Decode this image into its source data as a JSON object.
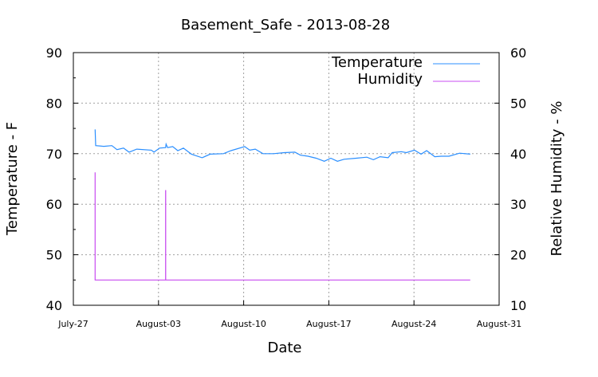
{
  "chart_data": {
    "type": "line",
    "title": "Basement_Safe - 2013-08-28",
    "xlabel": "Date",
    "ylabel": "Temperature - F",
    "y2label": "Relative Humidity - %",
    "xlim": [
      "2013-07-27T00:00",
      "2013-08-31T00:00"
    ],
    "ylim": [
      40,
      90
    ],
    "y2lim": [
      10,
      60
    ],
    "x_ticks": [
      {
        "date": "2013-07-27T00:00",
        "label": "July-27"
      },
      {
        "date": "2013-08-03T00:00",
        "label": "August-03"
      },
      {
        "date": "2013-08-10T00:00",
        "label": "August-10"
      },
      {
        "date": "2013-08-17T00:00",
        "label": "August-17"
      },
      {
        "date": "2013-08-24T00:00",
        "label": "August-24"
      },
      {
        "date": "2013-08-31T00:00",
        "label": "August-31"
      }
    ],
    "y_ticks": [
      "40",
      "50",
      "60",
      "70",
      "80",
      "90"
    ],
    "y2_ticks": [
      "10",
      "20",
      "30",
      "40",
      "50",
      "60"
    ],
    "grid": true,
    "legend": "top-right",
    "series": [
      {
        "name": "Temperature",
        "axis": "left",
        "color": "#2b8fff",
        "points": [
          [
            "2013-07-28T19:00",
            74.8
          ],
          [
            "2013-07-28T20:00",
            71.6
          ],
          [
            "2013-07-29T12:00",
            71.45
          ],
          [
            "2013-07-30T04:00",
            71.6
          ],
          [
            "2013-07-30T14:00",
            70.8
          ],
          [
            "2013-07-31T03:00",
            71.1
          ],
          [
            "2013-07-31T14:00",
            70.3
          ],
          [
            "2013-08-01T05:00",
            70.9
          ],
          [
            "2013-08-02T10:00",
            70.7
          ],
          [
            "2013-08-02T15:00",
            70.3
          ],
          [
            "2013-08-03T02:00",
            71.1
          ],
          [
            "2013-08-03T14:00",
            71.2
          ],
          [
            "2013-08-03T15:00",
            71.9
          ],
          [
            "2013-08-03T18:00",
            71.2
          ],
          [
            "2013-08-04T04:00",
            71.4
          ],
          [
            "2013-08-04T14:00",
            70.6
          ],
          [
            "2013-08-05T01:00",
            71.1
          ],
          [
            "2013-08-05T17:00",
            69.9
          ],
          [
            "2013-08-06T14:00",
            69.2
          ],
          [
            "2013-08-07T06:00",
            69.9
          ],
          [
            "2013-08-08T08:00",
            70.0
          ],
          [
            "2013-08-08T23:00",
            70.6
          ],
          [
            "2013-08-10T02:00",
            71.4
          ],
          [
            "2013-08-10T12:00",
            70.7
          ],
          [
            "2013-08-10T23:00",
            70.9
          ],
          [
            "2013-08-11T14:00",
            70.0
          ],
          [
            "2013-08-12T11:00",
            70.0
          ],
          [
            "2013-08-13T08:00",
            70.2
          ],
          [
            "2013-08-14T05:00",
            70.3
          ],
          [
            "2013-08-14T16:00",
            69.7
          ],
          [
            "2013-08-15T07:00",
            69.5
          ],
          [
            "2013-08-15T23:00",
            69.1
          ],
          [
            "2013-08-16T15:00",
            68.5
          ],
          [
            "2013-08-17T04:00",
            69.1
          ],
          [
            "2013-08-17T17:00",
            68.5
          ],
          [
            "2013-08-18T06:00",
            68.9
          ],
          [
            "2013-08-19T06:00",
            69.1
          ],
          [
            "2013-08-20T03:00",
            69.3
          ],
          [
            "2013-08-20T16:00",
            68.8
          ],
          [
            "2013-08-21T05:00",
            69.4
          ],
          [
            "2013-08-21T21:00",
            69.2
          ],
          [
            "2013-08-22T05:00",
            70.2
          ],
          [
            "2013-08-22T23:00",
            70.4
          ],
          [
            "2013-08-23T09:00",
            70.2
          ],
          [
            "2013-08-24T01:00",
            70.7
          ],
          [
            "2013-08-24T14:00",
            69.9
          ],
          [
            "2013-08-25T01:00",
            70.6
          ],
          [
            "2013-08-25T17:00",
            69.4
          ],
          [
            "2013-08-26T06:00",
            69.5
          ],
          [
            "2013-08-26T21:00",
            69.5
          ],
          [
            "2013-08-27T18:00",
            70.1
          ],
          [
            "2013-08-28T15:00",
            69.9
          ]
        ]
      },
      {
        "name": "Humidity",
        "axis": "right",
        "color": "#c84cf0",
        "points": [
          [
            "2013-07-28T19:00",
            36.3
          ],
          [
            "2013-07-28T19:00",
            15.0
          ],
          [
            "2013-08-03T14:00",
            15.0
          ],
          [
            "2013-08-03T14:00",
            32.7
          ],
          [
            "2013-08-03T14:10",
            32.7
          ],
          [
            "2013-08-03T14:10",
            15.0
          ],
          [
            "2013-08-28T15:00",
            15.0
          ]
        ]
      }
    ]
  }
}
